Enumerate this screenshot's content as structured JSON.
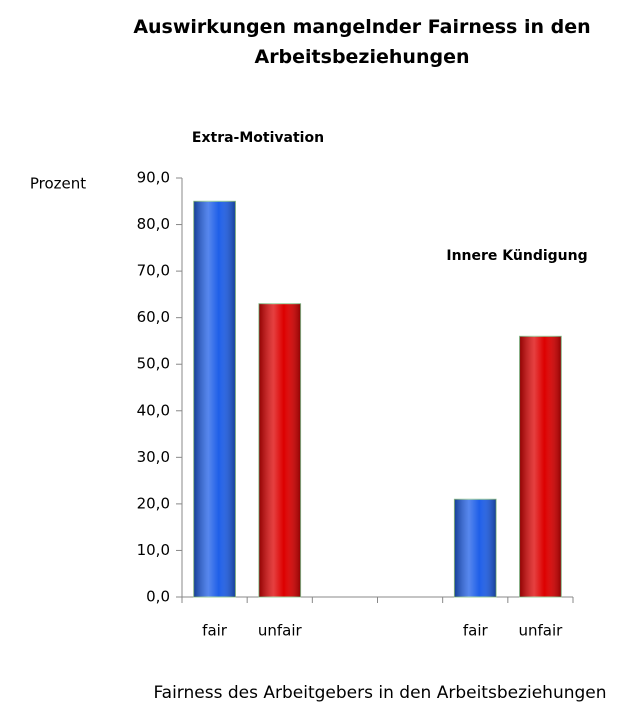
{
  "chart_data": {
    "type": "bar",
    "title": "Auswirkungen mangelnder Fairness in den Arbeitsbeziehungen",
    "y_label": "Prozent",
    "x_label": "Fairness des Arbeitgebers in den Arbeitsbeziehungen",
    "annotations": [
      "Extra-Motivation",
      "Innere Kündigung"
    ],
    "categories": [
      "fair",
      "unfair",
      null,
      null,
      "fair",
      "unfair"
    ],
    "values": [
      85,
      63,
      null,
      null,
      21,
      56
    ],
    "colors": [
      "#1f5fe8",
      "#dd0000",
      null,
      null,
      "#1f5fe8",
      "#dd0000"
    ],
    "ylim": [
      0,
      90
    ],
    "yticks": [
      {
        "value": 0,
        "label": "0,0"
      },
      {
        "value": 10,
        "label": "10,0"
      },
      {
        "value": 20,
        "label": "20,0"
      },
      {
        "value": 30,
        "label": "30,0"
      },
      {
        "value": 40,
        "label": "40,0"
      },
      {
        "value": 50,
        "label": "50,0"
      },
      {
        "value": 60,
        "label": "60,0"
      },
      {
        "value": 70,
        "label": "70,0"
      },
      {
        "value": 80,
        "label": "80,0"
      },
      {
        "value": 90,
        "label": "90,0"
      }
    ],
    "grid": false
  }
}
